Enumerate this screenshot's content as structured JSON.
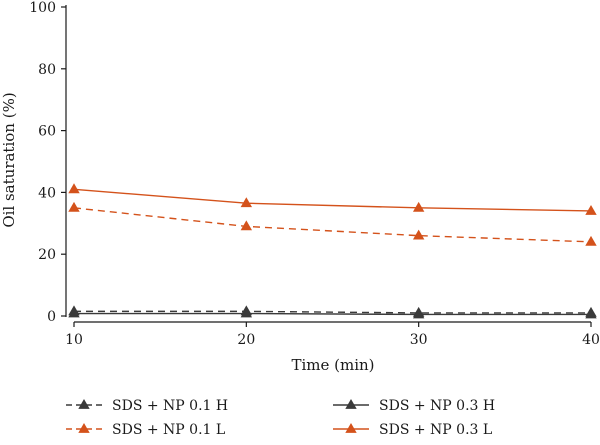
{
  "chart_data": {
    "type": "line",
    "xlabel": "Time (min)",
    "ylabel": "Oil saturation (%)",
    "x": [
      10,
      20,
      30,
      40
    ],
    "xlim": [
      10,
      40
    ],
    "ylim": [
      0,
      100
    ],
    "xticks": [
      10,
      20,
      30,
      40
    ],
    "yticks": [
      0,
      20,
      40,
      60,
      80,
      100
    ],
    "grid": false,
    "legend_position": "bottom",
    "series": [
      {
        "name": "SDS + NP 0.1 H",
        "values": [
          1.5,
          1.5,
          1.0,
          1.0
        ],
        "color": "#3a3a3a",
        "dash": "dashed",
        "marker": "triangle"
      },
      {
        "name": "SDS + NP 0.3 H",
        "values": [
          0.8,
          0.8,
          0.5,
          0.5
        ],
        "color": "#3a3a3a",
        "dash": "solid",
        "marker": "triangle"
      },
      {
        "name": "SDS + NP 0.1 L",
        "values": [
          35,
          29,
          26,
          24
        ],
        "color": "#d4521b",
        "dash": "dashed",
        "marker": "triangle"
      },
      {
        "name": "SDS + NP 0.3 L",
        "values": [
          41,
          36.5,
          35,
          34
        ],
        "color": "#d4521b",
        "dash": "solid",
        "marker": "triangle"
      }
    ]
  }
}
